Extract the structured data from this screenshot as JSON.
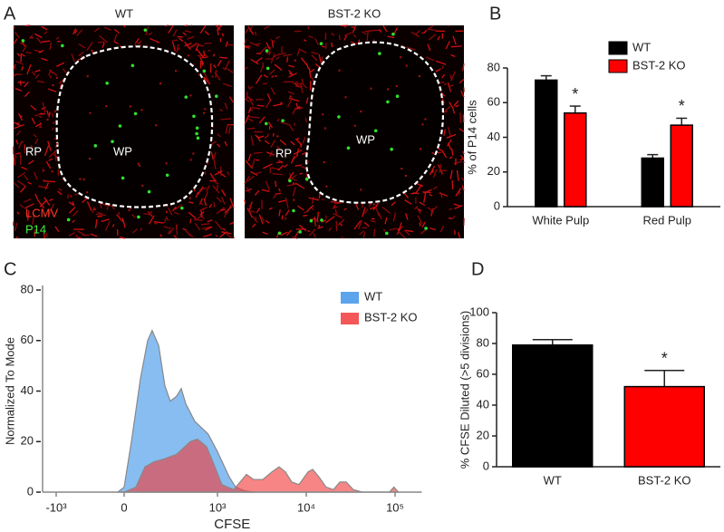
{
  "panel_a": {
    "label": "A",
    "left_title": "WT",
    "right_title": "BST-2 KO",
    "left_rp": "RP",
    "left_wp": "WP",
    "right_rp": "RP",
    "right_wp": "WP",
    "legend_lcmv": "LCMV",
    "legend_p14": "P14"
  },
  "chart_data": [
    {
      "type": "bar",
      "panel_label": "B",
      "ylabel": "% of P14 cells",
      "categories": [
        "White Pulp",
        "Red Pulp"
      ],
      "series": [
        {
          "name": "WT",
          "color": "#000000",
          "values": [
            73,
            28
          ],
          "errors": [
            2.5,
            2
          ]
        },
        {
          "name": "BST-2 KO",
          "color": "#ff0000",
          "values": [
            54,
            47
          ],
          "errors": [
            4,
            4
          ],
          "significance": [
            "*",
            "*"
          ]
        }
      ],
      "ylim": [
        0,
        80
      ],
      "yticks": [
        0,
        20,
        40,
        60,
        80
      ]
    },
    {
      "type": "area",
      "panel_label": "C",
      "xlabel": "CFSE",
      "ylabel": "Normalized To Mode",
      "xscale": "biexponential",
      "series": [
        {
          "name": "WT",
          "color": "#3f94e8",
          "x": [
            -93,
            0,
            78,
            175,
            252,
            300,
            370,
            437,
            495,
            563,
            612,
            660,
            757,
            900,
            1000,
            1356,
            1600,
            2020,
            2560
          ],
          "values": [
            0,
            2,
            20,
            45,
            60,
            64,
            58,
            42,
            36,
            38,
            41,
            35,
            28,
            23,
            16,
            6,
            2,
            0.5,
            0
          ]
        },
        {
          "name": "BST-2 KO",
          "color": "#f23a3a",
          "x": [
            0,
            126,
            223,
            320,
            417,
            563,
            709,
            786,
            883,
            951,
            1120,
            1520,
            1800,
            2120,
            2560,
            3240,
            4100,
            4940,
            5820,
            6860,
            8300,
            10470,
            11800,
            13900,
            16700,
            20200,
            23900,
            28100,
            33800,
            42800,
            86500,
            97000,
            109000
          ],
          "values": [
            0,
            2,
            10,
            12,
            13,
            15,
            20,
            21,
            18,
            12,
            3,
            1,
            4,
            7,
            5,
            5,
            8,
            10,
            8,
            4,
            3,
            8,
            9,
            6,
            2,
            1,
            4,
            4,
            1,
            0,
            0,
            2,
            0
          ]
        }
      ],
      "xlim": [
        -1200,
        200000
      ],
      "xticks": [
        {
          "value": -1000,
          "label": "-10³"
        },
        0,
        {
          "value": 1000,
          "label": "10³"
        },
        {
          "value": 10000,
          "label": "10⁴"
        },
        {
          "value": 100000,
          "label": "10⁵"
        }
      ],
      "ylim": [
        0,
        80
      ],
      "yticks": [
        0,
        20,
        40,
        60,
        80
      ]
    },
    {
      "type": "bar",
      "panel_label": "D",
      "ylabel": "% CFSE Diluted (>5 divisions)",
      "categories": [
        "WT",
        "BST-2 KO"
      ],
      "values": [
        79,
        52
      ],
      "errors": [
        3.5,
        10.5
      ],
      "colors": [
        "#000000",
        "#ff0000"
      ],
      "significance": [
        null,
        "*"
      ],
      "ylim": [
        0,
        100
      ],
      "yticks": [
        0,
        20,
        40,
        60,
        80,
        100
      ]
    }
  ]
}
